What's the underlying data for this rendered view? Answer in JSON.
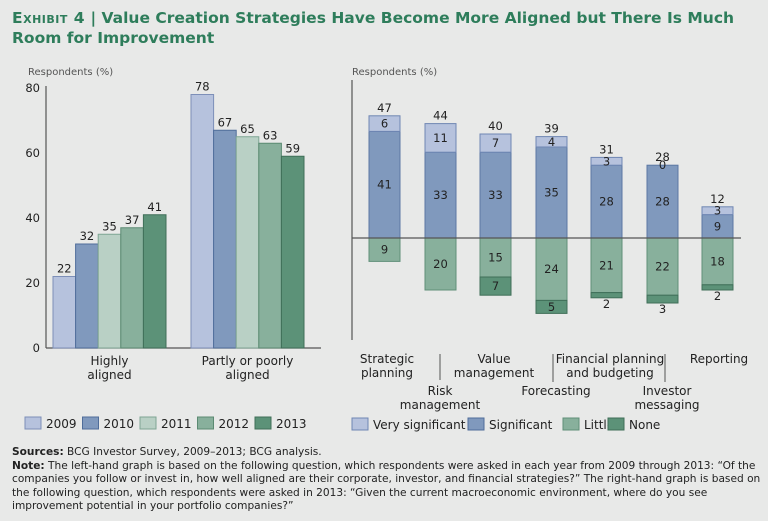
{
  "header": {
    "exhibit": "Exhibit 4",
    "separator": "|",
    "title": "Value Creation Strategies Have Become More Aligned but There Is Much Room for Improvement"
  },
  "colors": {
    "title": "#2e7d5b",
    "y2009": "#b6c2dd",
    "y2010": "#8099bd",
    "y2011": "#b9d0c5",
    "y2012": "#88b09c",
    "y2013": "#5c9278",
    "very_significant": "#b6c2dd",
    "significant": "#8099bd",
    "little": "#88b09c",
    "none": "#5c9278"
  },
  "chart_data": [
    {
      "type": "bar",
      "ylabel": "Respondents (%)",
      "ylim": [
        0,
        80
      ],
      "yticks": [
        0,
        20,
        40,
        60,
        80
      ],
      "categories": [
        "Highly aligned",
        "Partly or poorly aligned"
      ],
      "category_lines": [
        [
          "Highly",
          "aligned"
        ],
        [
          "Partly or poorly",
          "aligned"
        ]
      ],
      "series": [
        {
          "name": "2009",
          "values": [
            22,
            78
          ]
        },
        {
          "name": "2010",
          "values": [
            32,
            67
          ]
        },
        {
          "name": "2011",
          "values": [
            35,
            65
          ]
        },
        {
          "name": "2012",
          "values": [
            37,
            63
          ]
        },
        {
          "name": "2013",
          "values": [
            41,
            59
          ]
        }
      ],
      "legend": "bottom",
      "grid": false
    },
    {
      "type": "bar",
      "stacked": "diverging",
      "ylabel": "Respondents (%)",
      "categories": [
        "Strategic planning",
        "Risk management",
        "Value management",
        "Forecasting",
        "Financial planning and budgeting",
        "Investor messaging",
        "Reporting"
      ],
      "category_lines": [
        [
          "Strategic",
          "planning"
        ],
        [
          "Risk",
          "management"
        ],
        [
          "Value",
          "management"
        ],
        [
          "Forecasting"
        ],
        [
          "Financial planning",
          "and budgeting"
        ],
        [
          "Investor",
          "messaging"
        ],
        [
          "Reporting"
        ]
      ],
      "totals_positive": [
        47,
        44,
        40,
        39,
        31,
        28,
        12
      ],
      "series": [
        {
          "name": "Very significant",
          "direction": "up",
          "values": [
            6,
            11,
            7,
            4,
            3,
            0,
            3
          ]
        },
        {
          "name": "Significant",
          "direction": "up",
          "values": [
            41,
            33,
            33,
            35,
            28,
            28,
            9
          ]
        },
        {
          "name": "Little",
          "direction": "down",
          "values": [
            9,
            20,
            15,
            24,
            21,
            22,
            18
          ]
        },
        {
          "name": "None",
          "direction": "down",
          "values": [
            0,
            0,
            7,
            5,
            2,
            3,
            2
          ]
        }
      ],
      "legend": "bottom",
      "grid": false
    }
  ],
  "notes": {
    "sources_label": "Sources:",
    "sources_text": " BCG Investor Survey, 2009–2013; BCG analysis.",
    "note_label": "Note:",
    "note_text": " The left-hand graph is based on the following question, which respondents were asked in each year from 2009 through 2013: “Of the companies you follow or invest in, how well aligned are their corporate, investor, and financial strategies?” The right-hand graph is based on the following question, which respondents were asked in 2013: “Given the current macroeconomic environment, where do you see improvement potential in your portfolio companies?”"
  }
}
